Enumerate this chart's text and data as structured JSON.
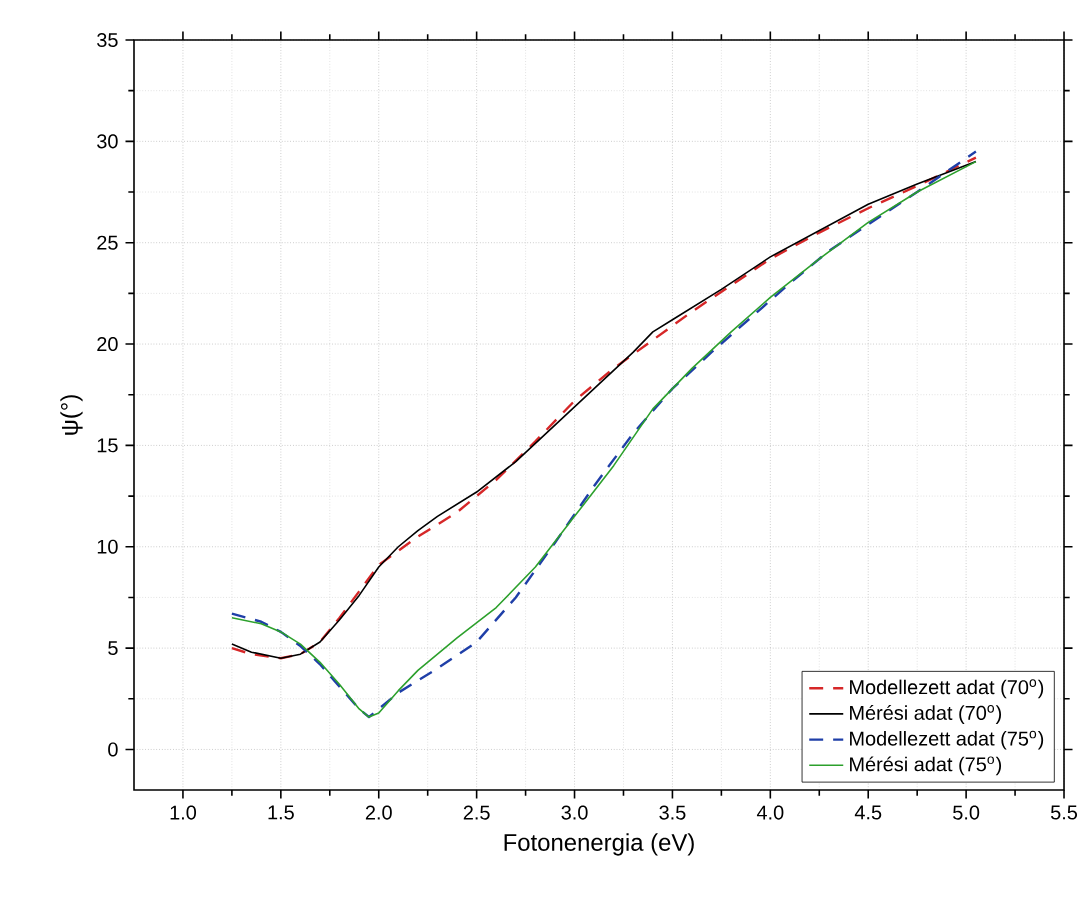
{
  "chart_data": {
    "type": "line",
    "xlabel": "Fotonenergia (eV)",
    "ylabel": "ψ(°)",
    "xlim": [
      0.75,
      5.5
    ],
    "ylim": [
      -2,
      35
    ],
    "xticks": [
      {
        "value": 1,
        "label": "1.0"
      },
      {
        "value": 1.5,
        "label": "1.5"
      },
      {
        "value": 2,
        "label": "2.0"
      },
      {
        "value": 2.5,
        "label": "2.5"
      },
      {
        "value": 3,
        "label": "3.0"
      },
      {
        "value": 3.5,
        "label": "3.5"
      },
      {
        "value": 4,
        "label": "4.0"
      },
      {
        "value": 4.5,
        "label": "4.5"
      },
      {
        "value": 5,
        "label": "5.0"
      },
      {
        "value": 5.5,
        "label": "5.5"
      }
    ],
    "yticks": [
      0,
      5,
      10,
      15,
      20,
      25,
      30,
      35
    ],
    "grid": true,
    "legend": "bottom right",
    "series": [
      {
        "name": "Modellezett adat (70$^{o}$)",
        "color": "#d62728",
        "line_style": "dashed",
        "x": [
          1.25,
          1.35,
          1.5,
          1.6,
          1.7,
          1.8,
          1.9,
          2.0,
          2.2,
          2.4,
          2.6,
          2.8,
          3.0,
          3.2,
          3.4,
          3.6,
          3.8,
          4.0,
          4.25,
          4.5,
          4.75,
          5.05
        ],
        "values": [
          5.0,
          4.7,
          4.5,
          4.7,
          5.3,
          6.5,
          7.8,
          9.1,
          10.5,
          11.7,
          13.3,
          15.2,
          17.2,
          18.8,
          20.2,
          21.6,
          22.9,
          24.2,
          25.5,
          26.7,
          27.8,
          29.2
        ]
      },
      {
        "name": "Mérési adat (70$^{o}$)",
        "color": "#000000",
        "line_style": "solid",
        "x": [
          1.25,
          1.35,
          1.5,
          1.6,
          1.7,
          1.8,
          1.9,
          2.0,
          2.1,
          2.2,
          2.3,
          2.5,
          2.7,
          2.9,
          3.1,
          3.3,
          3.4,
          3.5,
          3.75,
          4.0,
          4.25,
          4.5,
          4.75,
          5.05
        ],
        "values": [
          5.2,
          4.8,
          4.5,
          4.7,
          5.3,
          6.4,
          7.6,
          9.0,
          10.0,
          10.8,
          11.5,
          12.7,
          14.2,
          16.0,
          17.8,
          19.6,
          20.6,
          21.2,
          22.7,
          24.3,
          25.6,
          26.9,
          27.9,
          29.0
        ]
      },
      {
        "name": "Modellezett adat (75$^{o}$)",
        "color": "#1f3fa8",
        "line_style": "dashed",
        "x": [
          1.25,
          1.4,
          1.5,
          1.6,
          1.7,
          1.8,
          1.9,
          1.95,
          2.0,
          2.1,
          2.3,
          2.5,
          2.7,
          2.9,
          3.1,
          3.3,
          3.5,
          3.7,
          3.9,
          4.1,
          4.3,
          4.5,
          4.75,
          5.05
        ],
        "values": [
          6.7,
          6.3,
          5.8,
          5.1,
          4.2,
          3.1,
          2.0,
          1.6,
          2.0,
          2.8,
          4.0,
          5.3,
          7.5,
          10.2,
          13.0,
          15.6,
          17.8,
          19.6,
          21.3,
          23.0,
          24.6,
          25.9,
          27.5,
          29.5
        ]
      },
      {
        "name": "Mérési adat (75$^{o}$)",
        "color": "#2ca02c",
        "line_style": "solid",
        "x": [
          1.25,
          1.4,
          1.5,
          1.6,
          1.7,
          1.8,
          1.9,
          1.95,
          2.0,
          2.1,
          2.2,
          2.4,
          2.6,
          2.8,
          3.0,
          3.2,
          3.4,
          3.6,
          3.8,
          4.0,
          4.25,
          4.5,
          4.75,
          5.05
        ],
        "values": [
          6.5,
          6.2,
          5.8,
          5.2,
          4.3,
          3.2,
          2.0,
          1.6,
          1.8,
          2.9,
          3.9,
          5.5,
          7.0,
          9.0,
          11.5,
          14.0,
          16.8,
          18.8,
          20.6,
          22.3,
          24.2,
          26.0,
          27.5,
          29.0
        ]
      }
    ]
  }
}
